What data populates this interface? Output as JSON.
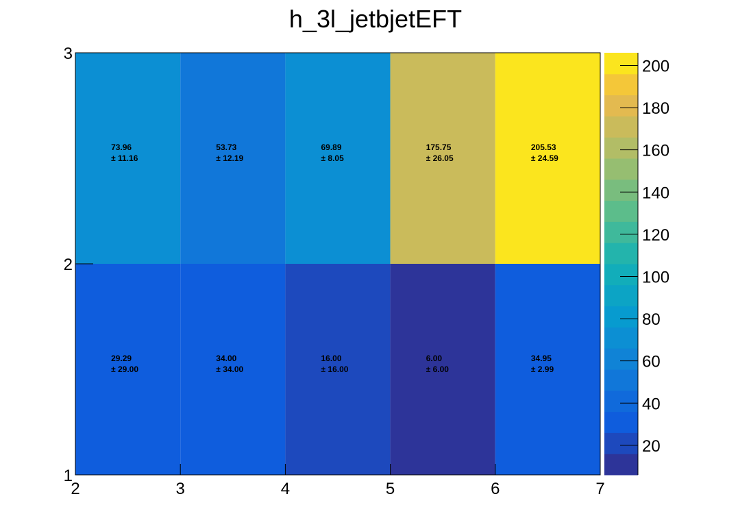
{
  "chart_data": {
    "type": "heatmap",
    "title": "h_3l_jetbjetEFT",
    "xlabel": "",
    "ylabel": "",
    "x_edges": [
      2,
      3,
      4,
      5,
      6,
      7
    ],
    "y_edges": [
      1,
      2,
      3
    ],
    "x_tick_labels": [
      "2",
      "3",
      "4",
      "5",
      "6",
      "7"
    ],
    "y_tick_labels": [
      "1",
      "2",
      "3"
    ],
    "xlim": [
      2,
      7
    ],
    "ylim": [
      1,
      3
    ],
    "zlim": [
      6,
      206
    ],
    "z_tick_labels": [
      "20",
      "40",
      "60",
      "80",
      "100",
      "120",
      "140",
      "160",
      "180",
      "200"
    ],
    "palette": "parula",
    "grid": false,
    "cells": [
      {
        "row": 0,
        "col": 0,
        "value": 29.29,
        "error": 29.0,
        "value_label": "29.29",
        "error_label": "± 29.00"
      },
      {
        "row": 0,
        "col": 1,
        "value": 34.0,
        "error": 34.0,
        "value_label": "34.00",
        "error_label": "± 34.00"
      },
      {
        "row": 0,
        "col": 2,
        "value": 16.0,
        "error": 16.0,
        "value_label": "16.00",
        "error_label": "± 16.00"
      },
      {
        "row": 0,
        "col": 3,
        "value": 6.0,
        "error": 6.0,
        "value_label": "6.00",
        "error_label": "± 6.00"
      },
      {
        "row": 0,
        "col": 4,
        "value": 34.95,
        "error": 2.99,
        "value_label": "34.95",
        "error_label": "± 2.99"
      },
      {
        "row": 1,
        "col": 0,
        "value": 73.96,
        "error": 11.16,
        "value_label": "73.96",
        "error_label": "± 11.16"
      },
      {
        "row": 1,
        "col": 1,
        "value": 53.73,
        "error": 12.19,
        "value_label": "53.73",
        "error_label": "± 12.19"
      },
      {
        "row": 1,
        "col": 2,
        "value": 69.89,
        "error": 8.05,
        "value_label": "69.89",
        "error_label": "± 8.05"
      },
      {
        "row": 1,
        "col": 3,
        "value": 175.75,
        "error": 26.05,
        "value_label": "175.75",
        "error_label": "± 26.05"
      },
      {
        "row": 1,
        "col": 4,
        "value": 205.53,
        "error": 24.59,
        "value_label": "205.53",
        "error_label": "± 24.59"
      }
    ]
  }
}
